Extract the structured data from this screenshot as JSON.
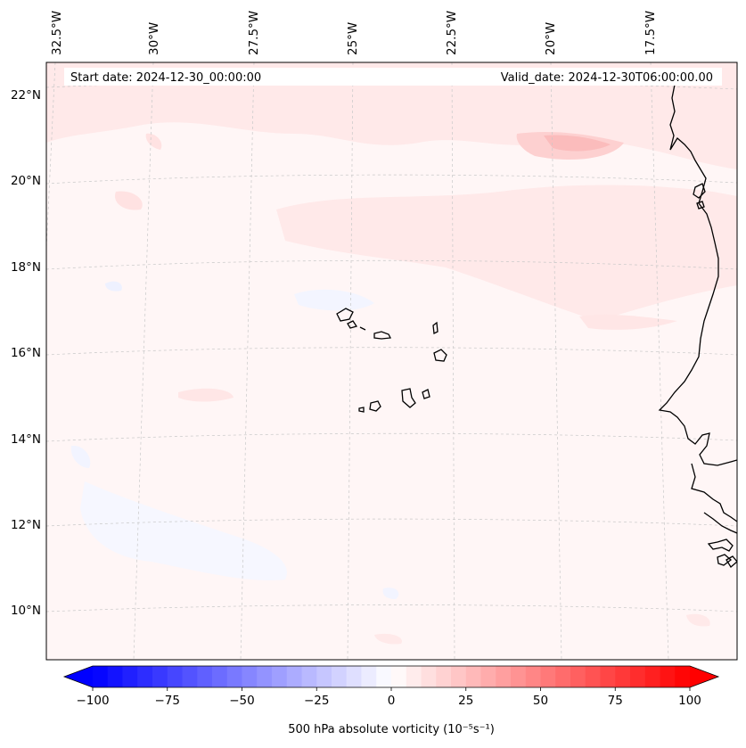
{
  "map": {
    "start_date": "Start date: 2024-12-30_00:00:00",
    "valid_date": "Valid_date: 2024-12-30T06:00:00.00",
    "lon_labels": [
      "32.5°W",
      "30°W",
      "27.5°W",
      "25°W",
      "22.5°W",
      "20°W",
      "17.5°W"
    ],
    "lat_labels": [
      "22°N",
      "20°N",
      "18°N",
      "16°N",
      "14°N",
      "12°N",
      "10°N"
    ],
    "gridlines": "dashed-light-gray"
  },
  "colorbar": {
    "label": "500 hPa absolute vorticity (10⁻⁵s⁻¹)",
    "ticks": [
      "−100",
      "−75",
      "−50",
      "−25",
      "0",
      "25",
      "50",
      "75",
      "100"
    ],
    "min": -100,
    "max": 100,
    "levels": 40,
    "extend": "both",
    "colormap": "bwr",
    "color_low": "#0000ff",
    "color_mid": "#ffffff",
    "color_high": "#ff0000"
  }
}
